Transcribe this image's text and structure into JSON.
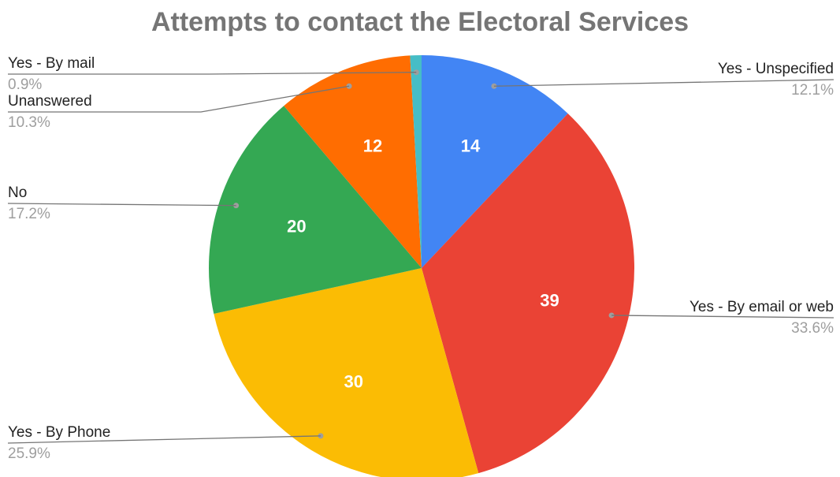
{
  "chart_data": {
    "type": "pie",
    "title": "Attempts to contact the Electoral Services",
    "slices": [
      {
        "label": "Yes - Unspecified",
        "value": 14,
        "percent": "12.1%",
        "color": "#4285f4"
      },
      {
        "label": "Yes - By email or web",
        "value": 39,
        "percent": "33.6%",
        "color": "#ea4335"
      },
      {
        "label": "Yes - By Phone",
        "value": 30,
        "percent": "25.9%",
        "color": "#fbbc04"
      },
      {
        "label": "No",
        "value": 20,
        "percent": "17.2%",
        "color": "#34a853"
      },
      {
        "label": "Unanswered",
        "value": 12,
        "percent": "10.3%",
        "color": "#ff6d01"
      },
      {
        "label": "Yes - By mail",
        "value": 1,
        "percent": "0.9%",
        "color": "#46bdc6"
      }
    ],
    "start_angle_deg": 0,
    "direction": "clockwise",
    "slice_value_labels": true,
    "legend": "none",
    "label_style": "outside labels with leader lines"
  }
}
